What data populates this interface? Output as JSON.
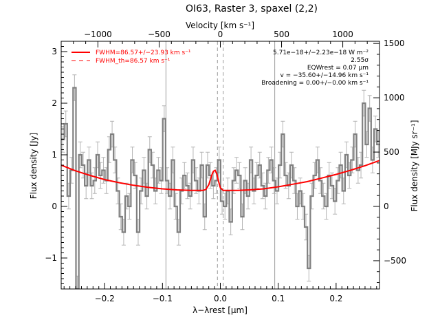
{
  "chart_data": {
    "type": "line",
    "title": "OI63, Raster 3, spaxel (2,2)",
    "xlabel": "λ−λrest [μm]",
    "ylabel": "Flux density [Jy]",
    "ylabel_right": "Flux density [MJy sr⁻¹]",
    "xlabel_top": "Velocity [km s⁻¹]",
    "xlim": [
      -0.275,
      0.275
    ],
    "ylim": [
      -1.6,
      3.2
    ],
    "y_right_lim": [
      -760,
      1520
    ],
    "top_lim": [
      -1300,
      1300
    ],
    "x_ticks": [
      -0.2,
      -0.1,
      0.0,
      0.1,
      0.2
    ],
    "x_tick_labels": [
      "−0.2",
      "−0.1",
      "0.0",
      "0.1",
      "0.2"
    ],
    "y_ticks": [
      -1,
      0,
      1,
      2,
      3
    ],
    "y_tick_labels": [
      "−1",
      "0",
      "1",
      "2",
      "3"
    ],
    "y_right_ticks": [
      -500,
      0,
      500,
      1000,
      1500
    ],
    "y_right_tick_labels": [
      "−500",
      "0",
      "500",
      "1000",
      "1500"
    ],
    "top_ticks": [
      -1000,
      -500,
      0,
      500,
      1000
    ],
    "top_tick_labels": [
      "−1000",
      "−500",
      "0",
      "500",
      "1000"
    ],
    "vertical_lines": [
      -0.094,
      0.094
    ],
    "dashed_vertical_lines": [
      -0.005,
      0.005
    ],
    "legend": [
      {
        "label": "FWHM=86.57+/−23.93 km s⁻¹",
        "style": "solid",
        "color": "#ff0000"
      },
      {
        "label": "FWHM_th=86.57 km s⁻¹",
        "style": "dashed",
        "color": "#ff0000"
      }
    ],
    "annotations": [
      "5.71e−18+/−2.23e−18 W m⁻²",
      "2.55σ",
      "EQWrest = 0.07 μm",
      "v = −35.60+/−14.96 km s⁻¹",
      "Broadening = 0.00+/−0.00 km s⁻¹"
    ],
    "series": [
      {
        "name": "data",
        "color": "#808080",
        "x": [
          -0.272,
          -0.267,
          -0.262,
          -0.257,
          -0.252,
          -0.247,
          -0.242,
          -0.237,
          -0.232,
          -0.227,
          -0.222,
          -0.217,
          -0.212,
          -0.207,
          -0.202,
          -0.197,
          -0.192,
          -0.187,
          -0.182,
          -0.177,
          -0.172,
          -0.167,
          -0.162,
          -0.157,
          -0.152,
          -0.147,
          -0.142,
          -0.137,
          -0.132,
          -0.127,
          -0.122,
          -0.117,
          -0.112,
          -0.107,
          -0.102,
          -0.097,
          -0.092,
          -0.087,
          -0.082,
          -0.077,
          -0.072,
          -0.067,
          -0.062,
          -0.057,
          -0.052,
          -0.047,
          -0.042,
          -0.037,
          -0.032,
          -0.027,
          -0.022,
          -0.017,
          -0.012,
          -0.007,
          -0.002,
          0.003,
          0.008,
          0.013,
          0.018,
          0.023,
          0.028,
          0.033,
          0.038,
          0.043,
          0.048,
          0.053,
          0.058,
          0.063,
          0.068,
          0.073,
          0.078,
          0.083,
          0.088,
          0.093,
          0.098,
          0.103,
          0.108,
          0.113,
          0.118,
          0.123,
          0.128,
          0.133,
          0.138,
          0.143,
          0.148,
          0.153,
          0.158,
          0.163,
          0.168,
          0.173,
          0.178,
          0.183,
          0.188,
          0.193,
          0.198,
          0.203,
          0.208,
          0.213,
          0.218,
          0.223,
          0.228,
          0.233,
          0.238,
          0.243,
          0.248,
          0.253,
          0.258,
          0.263,
          0.268,
          0.273
        ],
        "values": [
          1.3,
          1.6,
          0.2,
          0.7,
          2.3,
          -1.6,
          1.0,
          0.8,
          0.4,
          0.9,
          0.4,
          0.5,
          1.0,
          0.6,
          0.7,
          0.5,
          1.1,
          1.4,
          0.9,
          0.3,
          -0.2,
          -0.5,
          0.2,
          0.0,
          0.9,
          0.6,
          -0.5,
          0.3,
          0.7,
          0.2,
          1.1,
          0.8,
          0.3,
          0.7,
          0.5,
          1.7,
          0.5,
          0.2,
          0.9,
          0.0,
          -0.5,
          0.3,
          0.6,
          0.4,
          0.2,
          0.9,
          0.5,
          0.3,
          0.8,
          -0.2,
          0.8,
          0.6,
          0.4,
          0.5,
          0.9,
          0.1,
          0.0,
          0.3,
          -0.3,
          0.5,
          0.7,
          0.6,
          -0.2,
          0.5,
          0.2,
          0.9,
          0.3,
          0.6,
          0.8,
          0.4,
          0.2,
          0.7,
          0.9,
          0.5,
          0.3,
          0.8,
          1.4,
          0.6,
          0.4,
          0.8,
          0.5,
          0.0,
          0.3,
          0.0,
          -0.4,
          -1.2,
          0.2,
          0.6,
          0.9,
          0.5,
          0.2,
          0.0,
          0.6,
          0.4,
          0.1,
          0.5,
          0.8,
          0.3,
          1.0,
          0.6,
          0.9,
          1.4,
          0.7,
          0.8,
          2.0,
          1.2,
          1.9,
          0.9,
          1.5,
          1.2
        ],
        "errors": [
          0.25,
          0.25,
          0.25,
          0.25,
          0.25,
          0.25,
          0.25,
          0.25,
          0.25,
          0.25,
          0.25,
          0.25,
          0.25,
          0.25,
          0.25,
          0.25,
          0.25,
          0.25,
          0.25,
          0.25,
          0.25,
          0.25,
          0.25,
          0.25,
          0.25,
          0.25,
          0.25,
          0.25,
          0.25,
          0.25,
          0.25,
          0.25,
          0.25,
          0.25,
          0.25,
          0.25,
          0.25,
          0.25,
          0.25,
          0.25,
          0.25,
          0.25,
          0.25,
          0.25,
          0.25,
          0.25,
          0.25,
          0.25,
          0.25,
          0.25,
          0.25,
          0.25,
          0.25,
          0.25,
          0.25,
          0.25,
          0.25,
          0.25,
          0.25,
          0.25,
          0.25,
          0.25,
          0.25,
          0.25,
          0.25,
          0.25,
          0.25,
          0.25,
          0.25,
          0.25,
          0.25,
          0.25,
          0.25,
          0.25,
          0.25,
          0.25,
          0.25,
          0.25,
          0.25,
          0.25,
          0.25,
          0.25,
          0.25,
          0.25,
          0.25,
          0.25,
          0.25,
          0.25,
          0.25,
          0.25,
          0.25,
          0.25,
          0.25,
          0.25,
          0.25,
          0.25,
          0.25,
          0.25,
          0.25,
          0.25,
          0.25,
          0.25,
          0.25,
          0.25,
          0.25,
          0.25,
          0.25,
          0.25,
          0.25,
          0.25
        ]
      },
      {
        "name": "fit",
        "color": "#ff0000",
        "x": [
          -0.275,
          -0.25,
          -0.225,
          -0.2,
          -0.175,
          -0.15,
          -0.125,
          -0.1,
          -0.075,
          -0.05,
          -0.04,
          -0.03,
          -0.025,
          -0.02,
          -0.015,
          -0.012,
          -0.009,
          -0.006,
          -0.003,
          0.0,
          0.005,
          0.01,
          0.02,
          0.03,
          0.05,
          0.075,
          0.1,
          0.125,
          0.15,
          0.175,
          0.2,
          0.225,
          0.25,
          0.275
        ],
        "values": [
          0.8,
          0.69,
          0.6,
          0.52,
          0.46,
          0.41,
          0.37,
          0.34,
          0.32,
          0.31,
          0.31,
          0.31,
          0.33,
          0.42,
          0.6,
          0.68,
          0.7,
          0.63,
          0.48,
          0.36,
          0.31,
          0.31,
          0.31,
          0.31,
          0.32,
          0.34,
          0.38,
          0.43,
          0.48,
          0.55,
          0.62,
          0.7,
          0.79,
          0.89
        ]
      }
    ]
  }
}
